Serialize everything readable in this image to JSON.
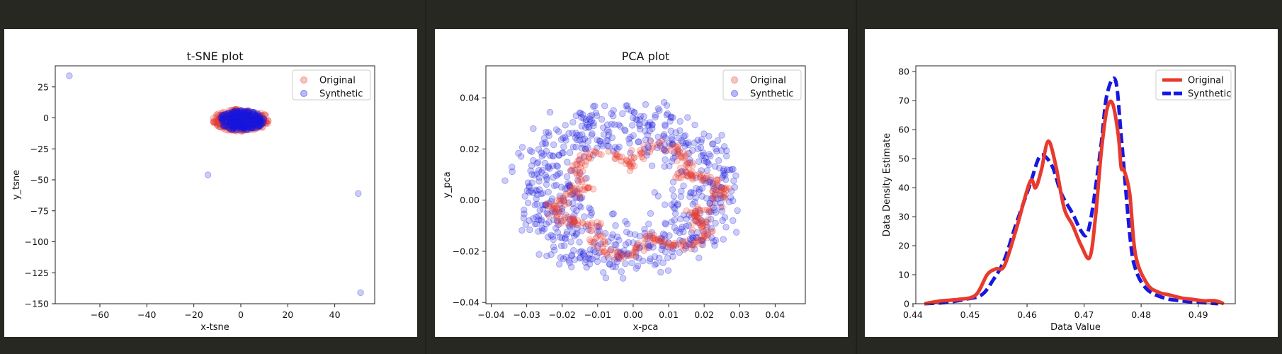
{
  "colors": {
    "background": "#272822",
    "original": "#e83a2d",
    "synthetic": "#1717e0"
  },
  "chart_data": [
    {
      "type": "scatter",
      "title": "t-SNE plot",
      "xlabel": "x-tsne",
      "ylabel": "y_tsne",
      "xlim": [
        -79,
        57
      ],
      "ylim": [
        -150,
        42
      ],
      "xticks": [
        -60,
        -40,
        -20,
        0,
        20,
        40
      ],
      "yticks": [
        25,
        0,
        -25,
        -50,
        -75,
        -100,
        -125,
        -150
      ],
      "xtick_labels": [
        "−60",
        "−40",
        "−20",
        "0",
        "20",
        "40"
      ],
      "ytick_labels": [
        "25",
        "0",
        "−25",
        "−50",
        "−75",
        "−100",
        "−125",
        "−150"
      ],
      "legend": {
        "position": "top-right",
        "entries": [
          "Original",
          "Synthetic"
        ]
      },
      "series": [
        {
          "name": "Original",
          "cluster": {
            "center": [
              0,
              -2
            ],
            "radius": [
              12,
              9
            ],
            "count": 300
          }
        },
        {
          "name": "Synthetic",
          "cluster": {
            "center": [
              0,
              -2
            ],
            "radius": [
              10,
              8
            ],
            "count": 300
          },
          "outliers": [
            [
              -73,
              34
            ],
            [
              -14,
              -46
            ],
            [
              50,
              -61
            ],
            [
              51,
              -141
            ]
          ]
        }
      ]
    },
    {
      "type": "scatter",
      "title": "PCA plot",
      "xlabel": "x-pca",
      "ylabel": "y_pca",
      "xlim": [
        -0.0415,
        0.0485
      ],
      "ylim": [
        -0.0405,
        0.0525
      ],
      "xticks": [
        -0.04,
        -0.03,
        -0.02,
        -0.01,
        0.0,
        0.01,
        0.02,
        0.03,
        0.04
      ],
      "yticks": [
        0.04,
        0.02,
        0.0,
        -0.02,
        -0.04
      ],
      "xtick_labels": [
        "−0.04",
        "−0.03",
        "−0.02",
        "−0.01",
        "0.00",
        "0.01",
        "0.02",
        "0.03",
        "0.04"
      ],
      "ytick_labels": [
        "0.04",
        "0.02",
        "0.00",
        "−0.02",
        "−0.04"
      ],
      "legend": {
        "position": "top-right",
        "entries": [
          "Original",
          "Synthetic"
        ]
      },
      "series": [
        {
          "name": "Original",
          "shape": "ring",
          "center": [
            0.002,
            0.0
          ],
          "radius": [
            0.024,
            0.022
          ],
          "count": 380
        },
        {
          "name": "Synthetic",
          "shape": "cloud",
          "center": [
            -0.002,
            0.004
          ],
          "radius": [
            0.03,
            0.033
          ],
          "count": 700
        }
      ]
    },
    {
      "type": "line",
      "title": "",
      "xlabel": "Data Value",
      "ylabel": "Data Density Estimate",
      "xlim": [
        0.4405,
        0.4965
      ],
      "ylim": [
        0,
        82
      ],
      "xticks": [
        0.44,
        0.45,
        0.46,
        0.47,
        0.48,
        0.49
      ],
      "yticks": [
        0,
        10,
        20,
        30,
        40,
        50,
        60,
        70,
        80
      ],
      "xtick_labels": [
        "0.44",
        "0.45",
        "0.46",
        "0.47",
        "0.48",
        "0.49"
      ],
      "ytick_labels": [
        "0",
        "10",
        "20",
        "30",
        "40",
        "50",
        "60",
        "70",
        "80"
      ],
      "legend": {
        "position": "top-right",
        "entries": [
          "Original",
          "Synthetic"
        ]
      },
      "series": [
        {
          "name": "Original",
          "style": "solid",
          "x": [
            0.442,
            0.445,
            0.448,
            0.451,
            0.453,
            0.4545,
            0.456,
            0.458,
            0.4605,
            0.4615,
            0.4625,
            0.4637,
            0.465,
            0.4665,
            0.468,
            0.4695,
            0.471,
            0.472,
            0.473,
            0.474,
            0.475,
            0.476,
            0.4765,
            0.477,
            0.478,
            0.479,
            0.481,
            0.483,
            0.485,
            0.487,
            0.489,
            0.491,
            0.493,
            0.4945
          ],
          "y": [
            0,
            1,
            1.5,
            3,
            10,
            12,
            13,
            25,
            42,
            40,
            46,
            56,
            48,
            33,
            27,
            20,
            16,
            30,
            52,
            67,
            69,
            58,
            47,
            46,
            38,
            17,
            7,
            4,
            3,
            2,
            1.5,
            1,
            1,
            0
          ]
        },
        {
          "name": "Synthetic",
          "style": "dashed",
          "x": [
            0.442,
            0.446,
            0.449,
            0.452,
            0.454,
            0.456,
            0.458,
            0.4605,
            0.462,
            0.463,
            0.4645,
            0.466,
            0.468,
            0.4695,
            0.4705,
            0.4715,
            0.473,
            0.474,
            0.4755,
            0.4765,
            0.478,
            0.479,
            0.481,
            0.484,
            0.487,
            0.49,
            0.4935
          ],
          "y": [
            0,
            0.5,
            1.5,
            3,
            8,
            15,
            27,
            41,
            50,
            51,
            47,
            38,
            31,
            25,
            24,
            33,
            55,
            72,
            77,
            58,
            24,
            12,
            5,
            2,
            1,
            0.5,
            0
          ]
        }
      ]
    }
  ]
}
